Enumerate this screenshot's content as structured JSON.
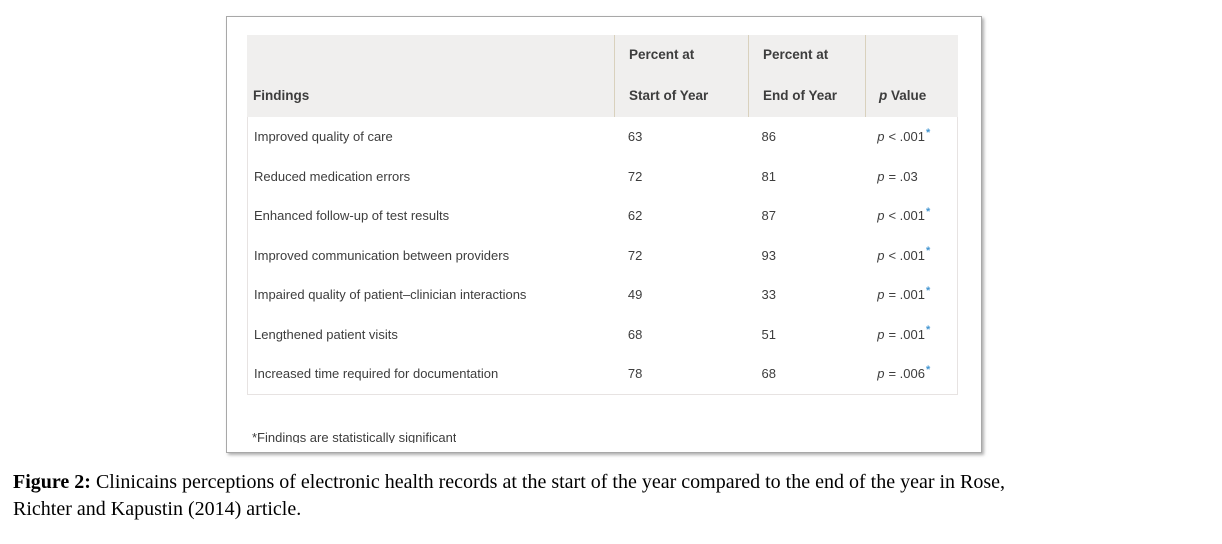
{
  "colors": {
    "star_blue": "#4596d1",
    "header_bg": "#f0efee",
    "header_divider": "#d9d1bd",
    "body_border": "#e7e3e2",
    "text": "#3d3d3d",
    "panel_border": "#a8a8a8"
  },
  "table": {
    "p_symbol": "p",
    "header": {
      "findings": "Findings",
      "col2_line1": "Percent at",
      "col2_line2": "Start of Year",
      "col3_line1": "Percent at",
      "col3_line2": "End of Year",
      "col4_italic": "p",
      "col4_rest": "Value"
    },
    "rows": [
      {
        "finding": "Improved quality of care",
        "start": "63",
        "end": "86",
        "p_text": "< .001",
        "star": "*"
      },
      {
        "finding": "Reduced medication errors",
        "start": "72",
        "end": "81",
        "p_text": "= .03",
        "star": ""
      },
      {
        "finding": "Enhanced follow-up of test results",
        "start": "62",
        "end": "87",
        "p_text": "< .001",
        "star": "*"
      },
      {
        "finding": "Improved communication between providers",
        "start": "72",
        "end": "93",
        "p_text": "< .001",
        "star": "*"
      },
      {
        "finding": "Impaired quality of patient–clinician interactions",
        "start": "49",
        "end": "33",
        "p_text": "= .001",
        "star": "*"
      },
      {
        "finding": "Lengthened patient visits",
        "start": "68",
        "end": "51",
        "p_text": "= .001",
        "star": "*"
      },
      {
        "finding": "Increased time required for documentation",
        "start": "78",
        "end": "68",
        "p_text": "= .006",
        "star": "*"
      }
    ],
    "footnote": "*Findings are statistically significant"
  },
  "chart_data": {
    "type": "table",
    "columns": [
      "Findings",
      "Percent at Start of Year",
      "Percent at End of Year",
      "p Value"
    ],
    "rows": [
      [
        "Improved quality of care",
        63,
        86,
        "p < .001*"
      ],
      [
        "Reduced medication errors",
        72,
        81,
        "p = .03"
      ],
      [
        "Enhanced follow-up of test results",
        62,
        87,
        "p < .001*"
      ],
      [
        "Improved communication between providers",
        72,
        93,
        "p < .001*"
      ],
      [
        "Impaired quality of patient–clinician interactions",
        49,
        33,
        "p = .001*"
      ],
      [
        "Lengthened patient visits",
        68,
        51,
        "p = .001*"
      ],
      [
        "Increased time required for documentation",
        78,
        68,
        "p = .006*"
      ]
    ],
    "footnote": "*Findings are statistically significant"
  },
  "caption": {
    "prefix": "Figure 2:",
    "line1": "Clinicains perceptions of electronic health records at the start of the year compared to the end of the year in Rose,",
    "line2": "Richter and Kapustin (2014) article."
  }
}
